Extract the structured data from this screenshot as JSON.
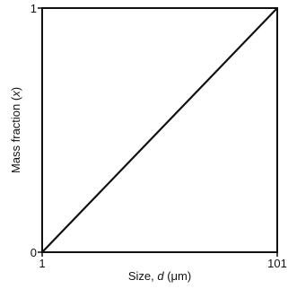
{
  "chart_data": {
    "type": "line",
    "title": "",
    "xlabel_parts": [
      {
        "text": "Size, ",
        "italic": false
      },
      {
        "text": "d",
        "italic": true
      },
      {
        "text": " (μm)",
        "italic": false
      }
    ],
    "ylabel_parts": [
      {
        "text": "Mass fraction (",
        "italic": false
      },
      {
        "text": "x",
        "italic": true
      },
      {
        "text": ")",
        "italic": false
      }
    ],
    "x_ticks": [
      "1",
      "101"
    ],
    "y_ticks": [
      "0",
      "1"
    ],
    "xlim": [
      1,
      101
    ],
    "ylim": [
      0,
      1
    ],
    "grid": false,
    "series": [
      {
        "x": [
          1,
          101
        ],
        "y": [
          0,
          1
        ],
        "color": "#111111"
      }
    ]
  }
}
